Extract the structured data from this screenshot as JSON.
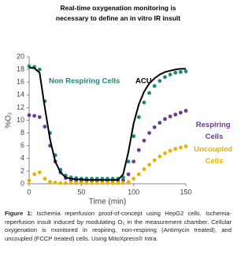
{
  "chart_data": {
    "type": "scatter",
    "title": "Real-time oxygenation monitoring is necessary to define an in vitro IR insult",
    "x_label": "Time (min)",
    "y_label": "%O₂",
    "xlim": [
      0,
      150
    ],
    "xticks": [
      0,
      50,
      100,
      150
    ],
    "ylim": [
      0,
      20
    ],
    "yticks": [
      0,
      2,
      4,
      6,
      8,
      10,
      12,
      14,
      16,
      18,
      20
    ],
    "grid": false,
    "x": [
      0,
      5,
      10,
      15,
      20,
      25,
      30,
      35,
      40,
      45,
      50,
      55,
      60,
      65,
      70,
      75,
      80,
      85,
      90,
      95,
      100,
      105,
      110,
      115,
      120,
      125,
      130,
      135,
      140,
      145,
      150
    ],
    "series": [
      {
        "name": "Non Respiring Cells",
        "color": "#178a78",
        "style": "markers",
        "values": [
          18.5,
          18.4,
          18.0,
          13,
          8,
          4.5,
          2.2,
          1.3,
          1.0,
          0.9,
          0.8,
          0.8,
          0.8,
          0.8,
          0.8,
          0.8,
          0.8,
          0.8,
          1.0,
          3.5,
          7.5,
          10.5,
          12.8,
          14.3,
          15.4,
          16.2,
          16.8,
          17.2,
          17.5,
          17.6,
          17.7
        ]
      },
      {
        "name": "ACU",
        "color": "#000000",
        "style": "line",
        "values": [
          18.3,
          18.2,
          17.5,
          12,
          7,
          3.5,
          1.8,
          1.0,
          0.8,
          0.7,
          0.7,
          0.6,
          0.6,
          0.6,
          0.6,
          0.6,
          0.6,
          0.6,
          1.5,
          5,
          9.5,
          12.5,
          14.5,
          15.8,
          16.6,
          17.2,
          17.6,
          17.8,
          18.0,
          18.1,
          18.1
        ]
      },
      {
        "name": "Respiring Cells",
        "color": "#6a3c8c",
        "style": "markers",
        "values": [
          10.8,
          10.7,
          10.5,
          9,
          6,
          3.5,
          1.8,
          0.9,
          0.6,
          0.5,
          0.5,
          0.5,
          0.5,
          0.5,
          0.5,
          0.5,
          0.5,
          0.5,
          0.6,
          1.5,
          3.5,
          5.3,
          6.8,
          8.0,
          8.9,
          9.6,
          10.2,
          10.6,
          10.9,
          11.2,
          11.5
        ]
      },
      {
        "name": "Uncoupled Cells",
        "color": "#e6b300",
        "style": "markers",
        "values": [
          0.5,
          1.5,
          1.8,
          0.8,
          0.3,
          0.2,
          0.1,
          0.1,
          0.1,
          0.1,
          0.1,
          0.1,
          0.1,
          0.1,
          0.1,
          0.1,
          0.1,
          0.1,
          0.1,
          0.3,
          0.8,
          1.5,
          2.3,
          3.0,
          3.7,
          4.3,
          4.8,
          5.2,
          5.5,
          5.7,
          5.9
        ]
      }
    ],
    "caption_label": "Figure 1:",
    "caption": "Ischemia reperfusion proof-of-concept using HepG2 cells. Ischemia-reperfusion insult induced by modulating O₂ in the measurement chamber. Cellular oxygenation is monitored in respiring, non-respiring (Antimycin treated), and uncoupled (FCCP treated) cells. Using MitoXpress® Intra."
  }
}
